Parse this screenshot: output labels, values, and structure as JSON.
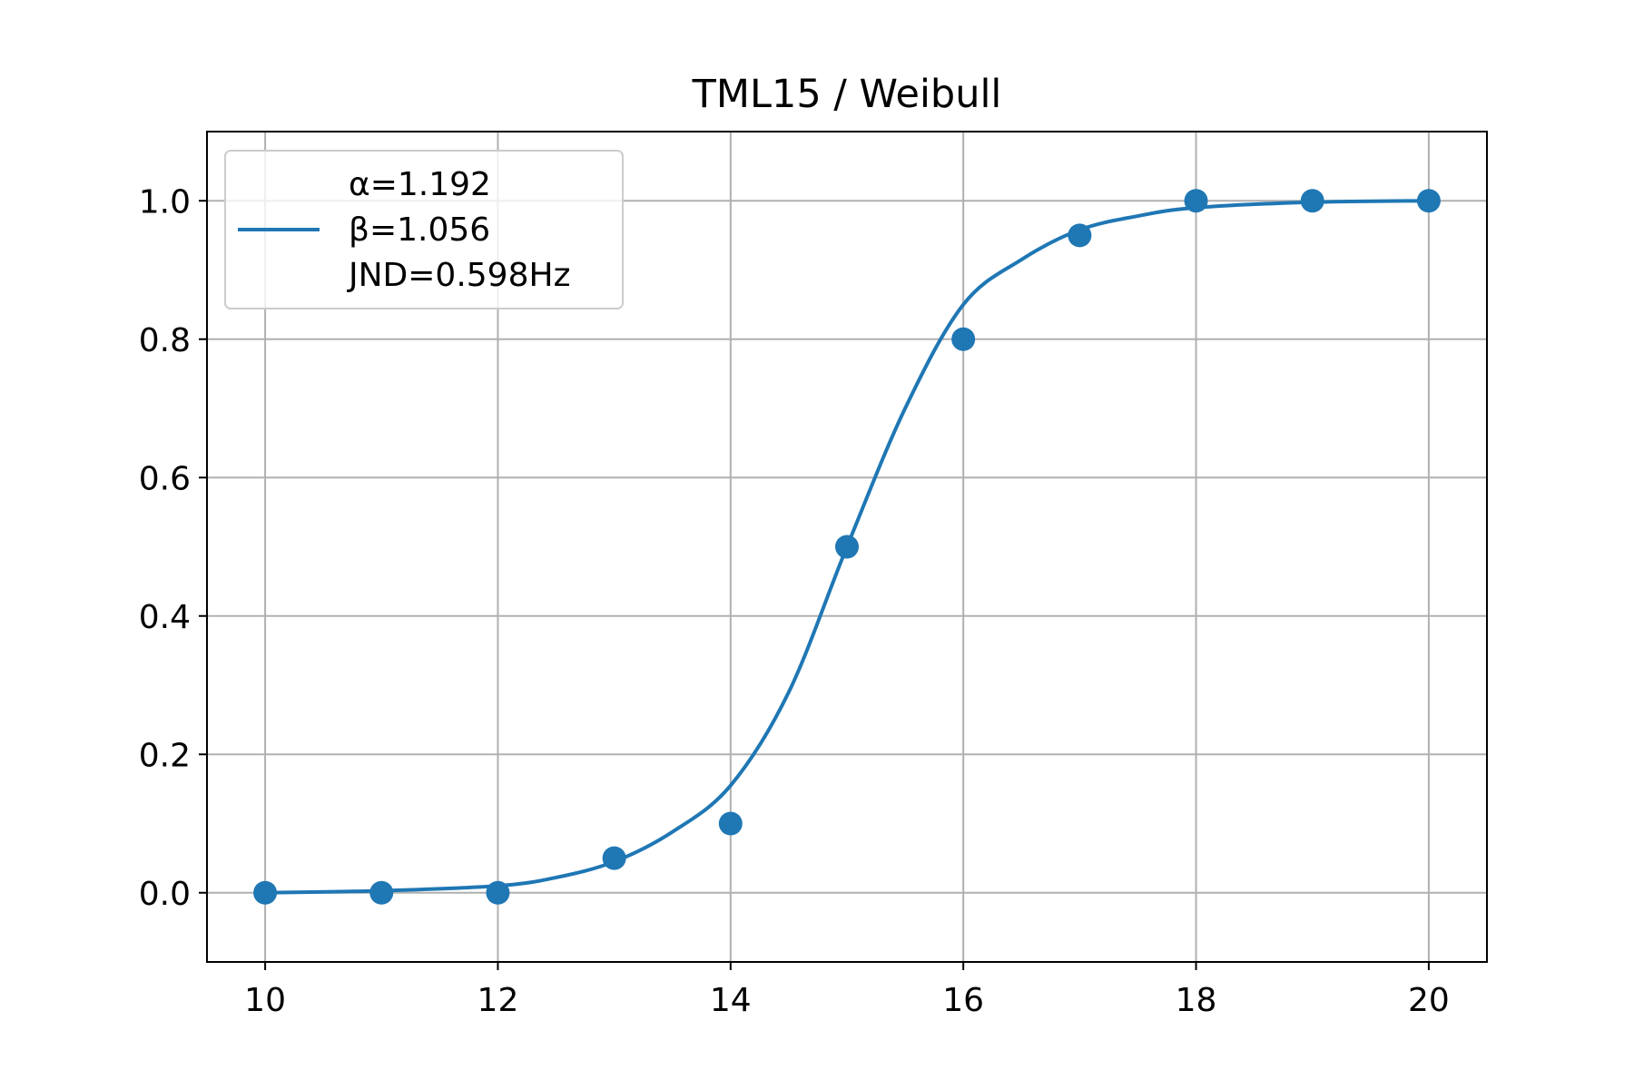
{
  "chart_data": {
    "type": "scatter",
    "title": "TML15 / Weibull",
    "xlabel": "",
    "ylabel": "",
    "xlim": [
      9.5,
      20.5
    ],
    "ylim": [
      -0.1,
      1.1
    ],
    "x_ticks": [
      "10",
      "12",
      "14",
      "16",
      "18",
      "20"
    ],
    "y_ticks": [
      "0.0",
      "0.2",
      "0.4",
      "0.6",
      "0.8",
      "1.0"
    ],
    "grid": true,
    "legend_placement": "upper-left",
    "legend_lines": [
      "α=1.192",
      "β=1.056",
      "JND=0.598Hz"
    ],
    "color": "#1f77b4",
    "series": [
      {
        "kind": "points",
        "x": [
          10,
          11,
          12,
          13,
          14,
          15,
          16,
          17,
          18,
          19,
          20
        ],
        "y": [
          0.0,
          0.0,
          0.0,
          0.05,
          0.1,
          0.5,
          0.8,
          0.95,
          1.0,
          1.0,
          1.0
        ]
      },
      {
        "kind": "fit-line",
        "x": [
          10,
          11,
          12,
          12.5,
          13,
          13.5,
          14,
          14.5,
          15,
          15.5,
          16,
          16.5,
          17,
          17.5,
          18,
          19,
          20
        ],
        "y": [
          0.0,
          0.003,
          0.01,
          0.022,
          0.045,
          0.088,
          0.155,
          0.29,
          0.5,
          0.7,
          0.85,
          0.915,
          0.958,
          0.978,
          0.99,
          0.998,
          1.0
        ]
      }
    ]
  }
}
